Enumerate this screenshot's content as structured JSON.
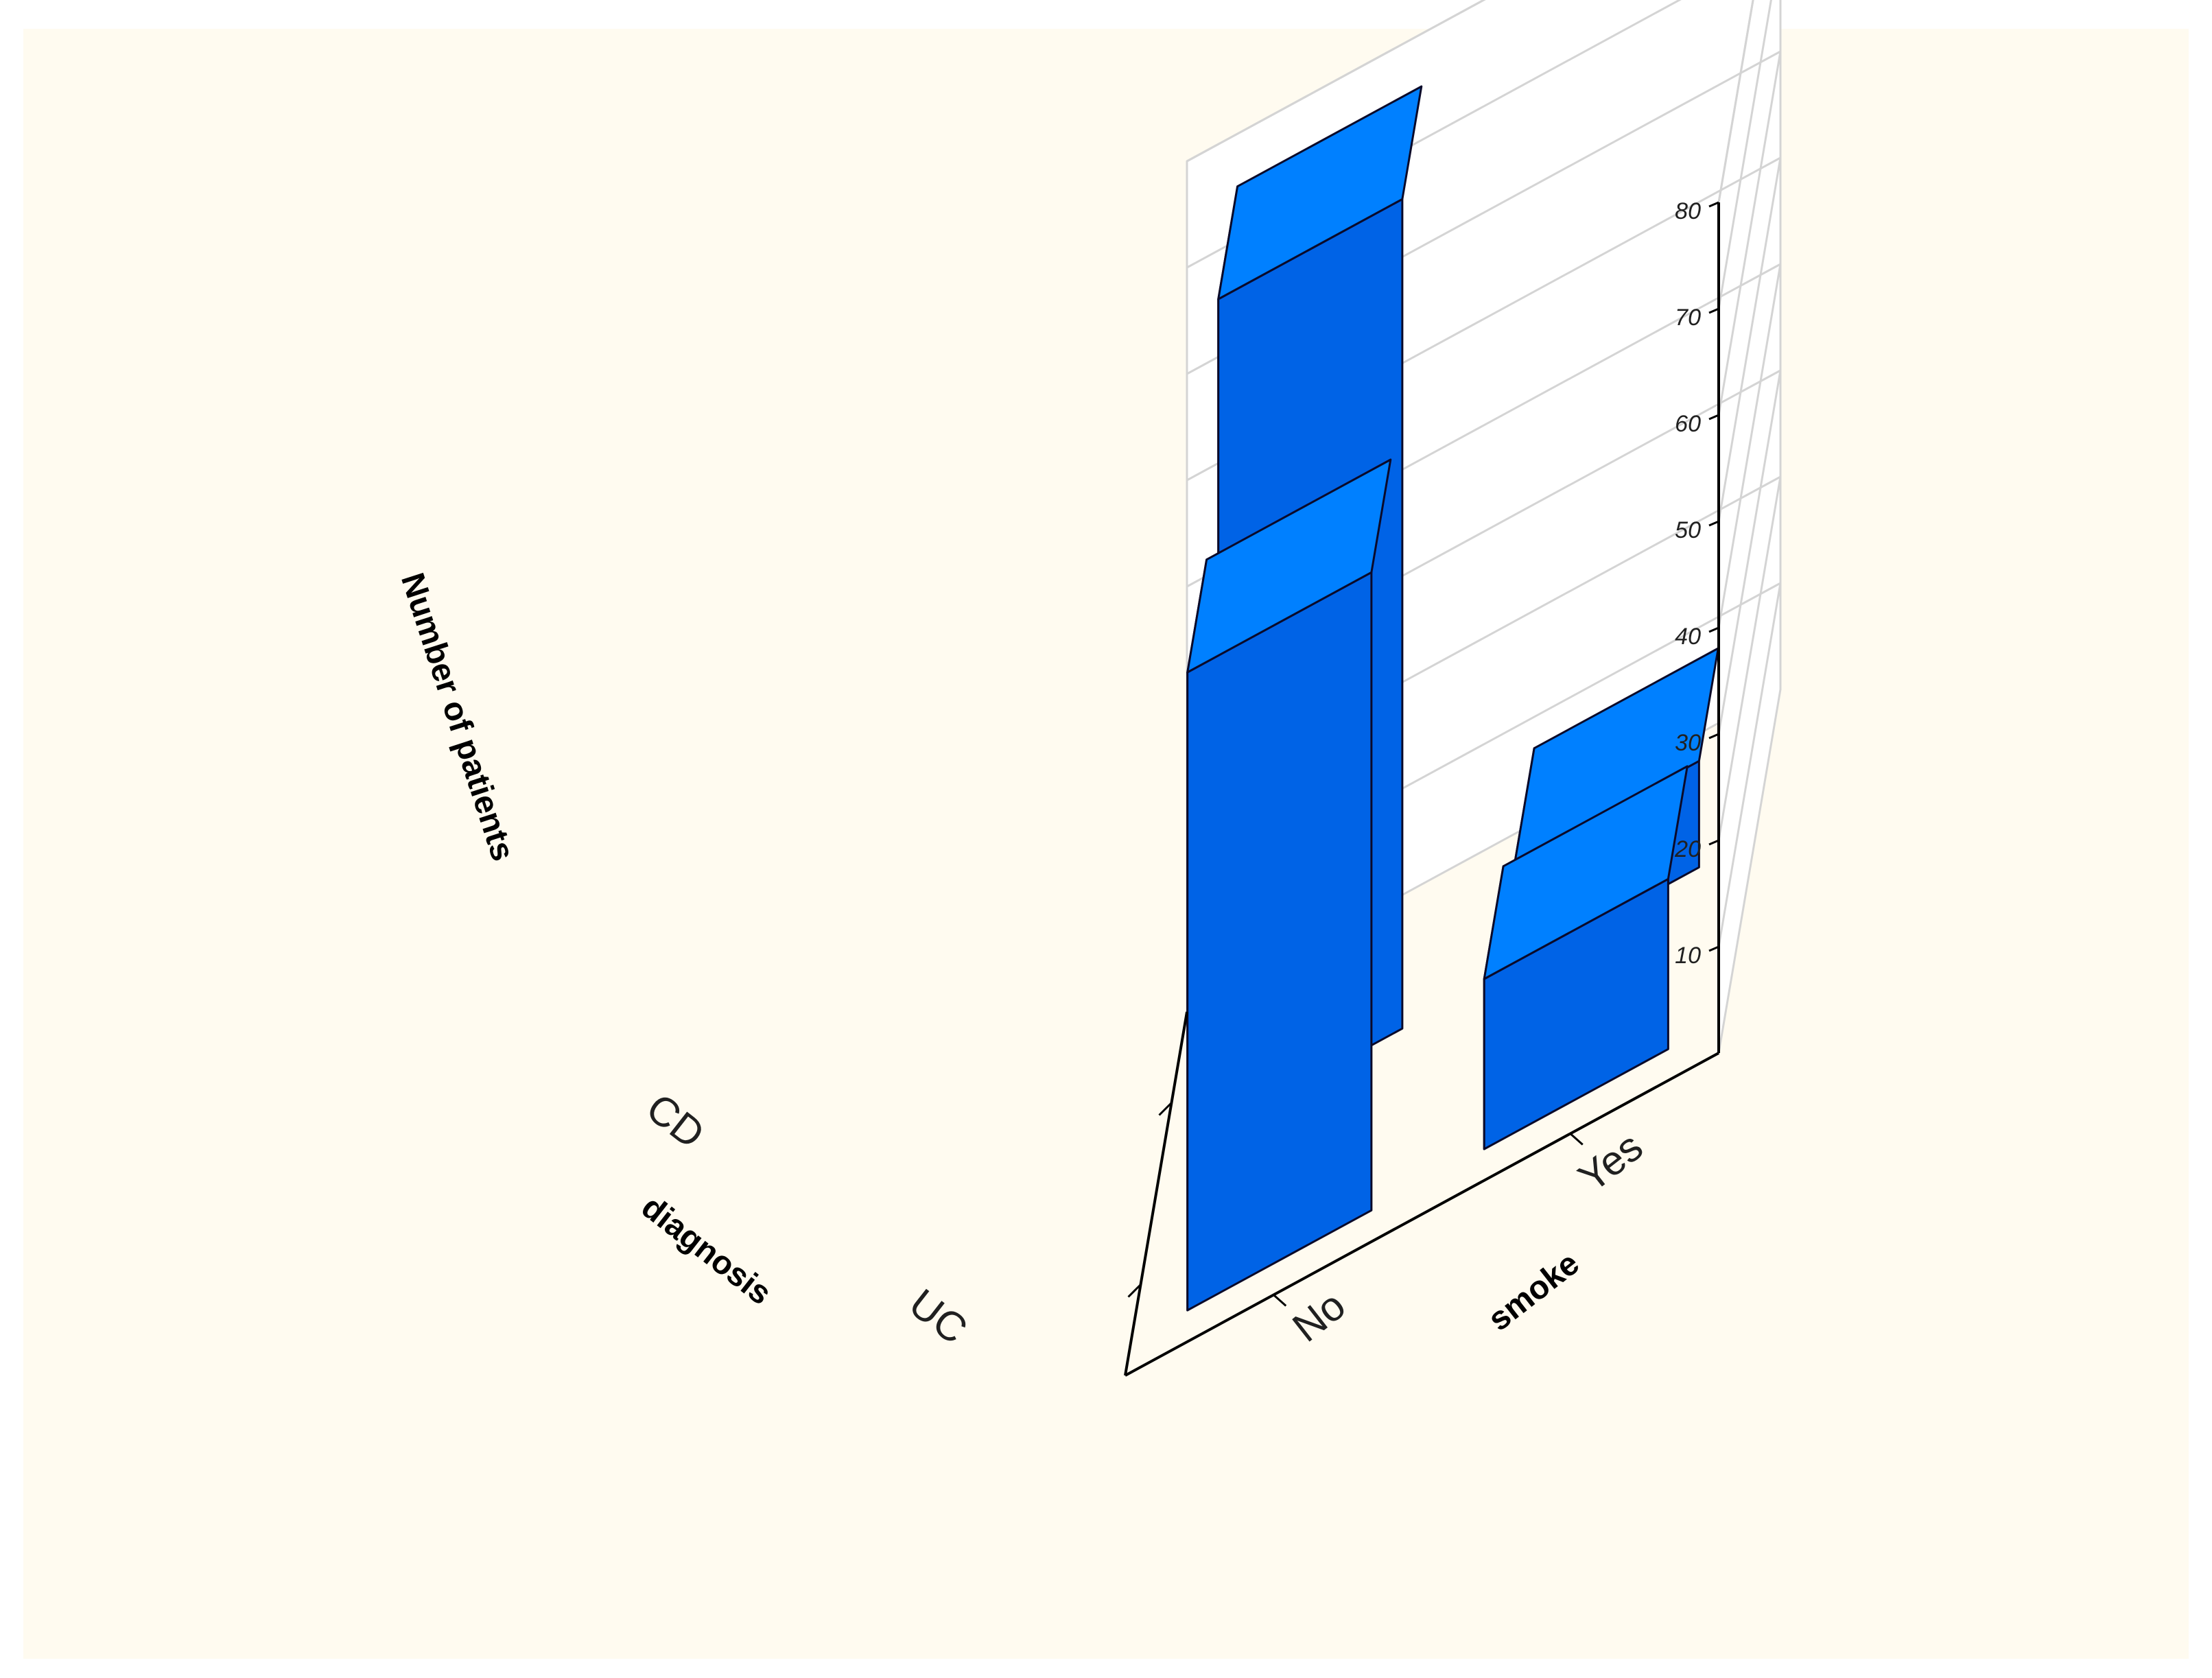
{
  "colors": {
    "background": "#fffbf0",
    "page": "#ffffff",
    "grid": "#d4d4d4",
    "axis": "#000000",
    "bar_top": "#0080ff",
    "bar_left": "#0052cc",
    "bar_right": "#0063e6",
    "bar_edge": "#0a0a2a"
  },
  "chart_data": {
    "type": "bar3d",
    "title": "",
    "x_axis": {
      "label": "diagnosis",
      "categories": [
        "CD",
        "UC"
      ]
    },
    "y_axis": {
      "label": "smoke",
      "categories": [
        "No",
        "Yes"
      ]
    },
    "z_axis": {
      "label": "Number of patients",
      "range": [
        0,
        80
      ],
      "ticks": [
        "10",
        "20",
        "30",
        "40",
        "50",
        "60",
        "70",
        "80"
      ]
    },
    "grid": true,
    "bars": [
      {
        "diagnosis": "CD",
        "smoke": "No",
        "value": 60
      },
      {
        "diagnosis": "CD",
        "smoke": "Yes",
        "value": 16
      },
      {
        "diagnosis": "UC",
        "smoke": "No",
        "value": 78
      },
      {
        "diagnosis": "UC",
        "smoke": "Yes",
        "value": 10
      }
    ]
  }
}
